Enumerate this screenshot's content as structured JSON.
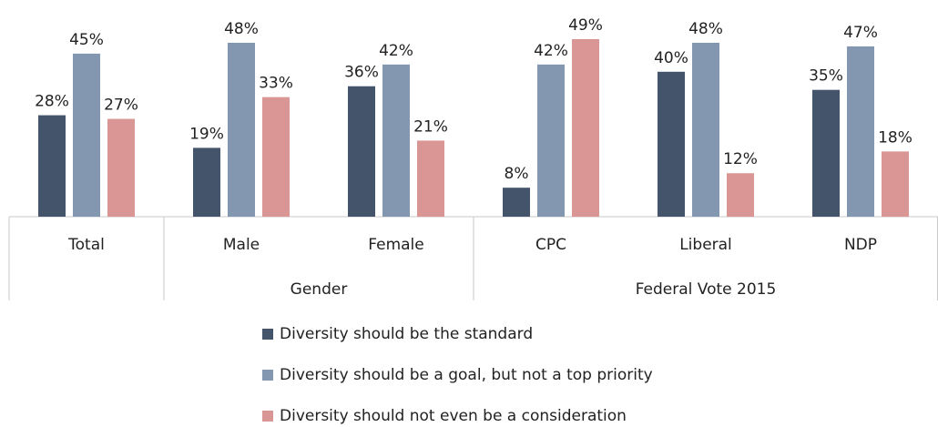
{
  "chart_data": {
    "type": "bar",
    "categories": [
      "Total",
      "Male",
      "Female",
      "CPC",
      "Liberal",
      "NDP"
    ],
    "category_groups": [
      null,
      "Gender",
      "Gender",
      "Federal Vote 2015",
      "Federal Vote 2015",
      "Federal Vote 2015"
    ],
    "series": [
      {
        "name": "Diversity should be the standard",
        "color": "#44546a",
        "values": [
          28,
          19,
          36,
          8,
          40,
          35
        ],
        "value_labels": [
          "28%",
          "19%",
          "36%",
          "8%",
          "40%",
          "35%"
        ]
      },
      {
        "name": "Diversity should be a goal, but not a top priority",
        "color": "#8497b0",
        "values": [
          45,
          48,
          42,
          42,
          48,
          47
        ],
        "value_labels": [
          "45%",
          "48%",
          "42%",
          "42%",
          "48%",
          "47%"
        ]
      },
      {
        "name": "Diversity should not even be a consideration",
        "color": "#da9694",
        "values": [
          27,
          33,
          21,
          49,
          12,
          18
        ],
        "value_labels": [
          "27%",
          "33%",
          "21%",
          "49%",
          "12%",
          "18%"
        ]
      }
    ],
    "legend": "bottom"
  }
}
